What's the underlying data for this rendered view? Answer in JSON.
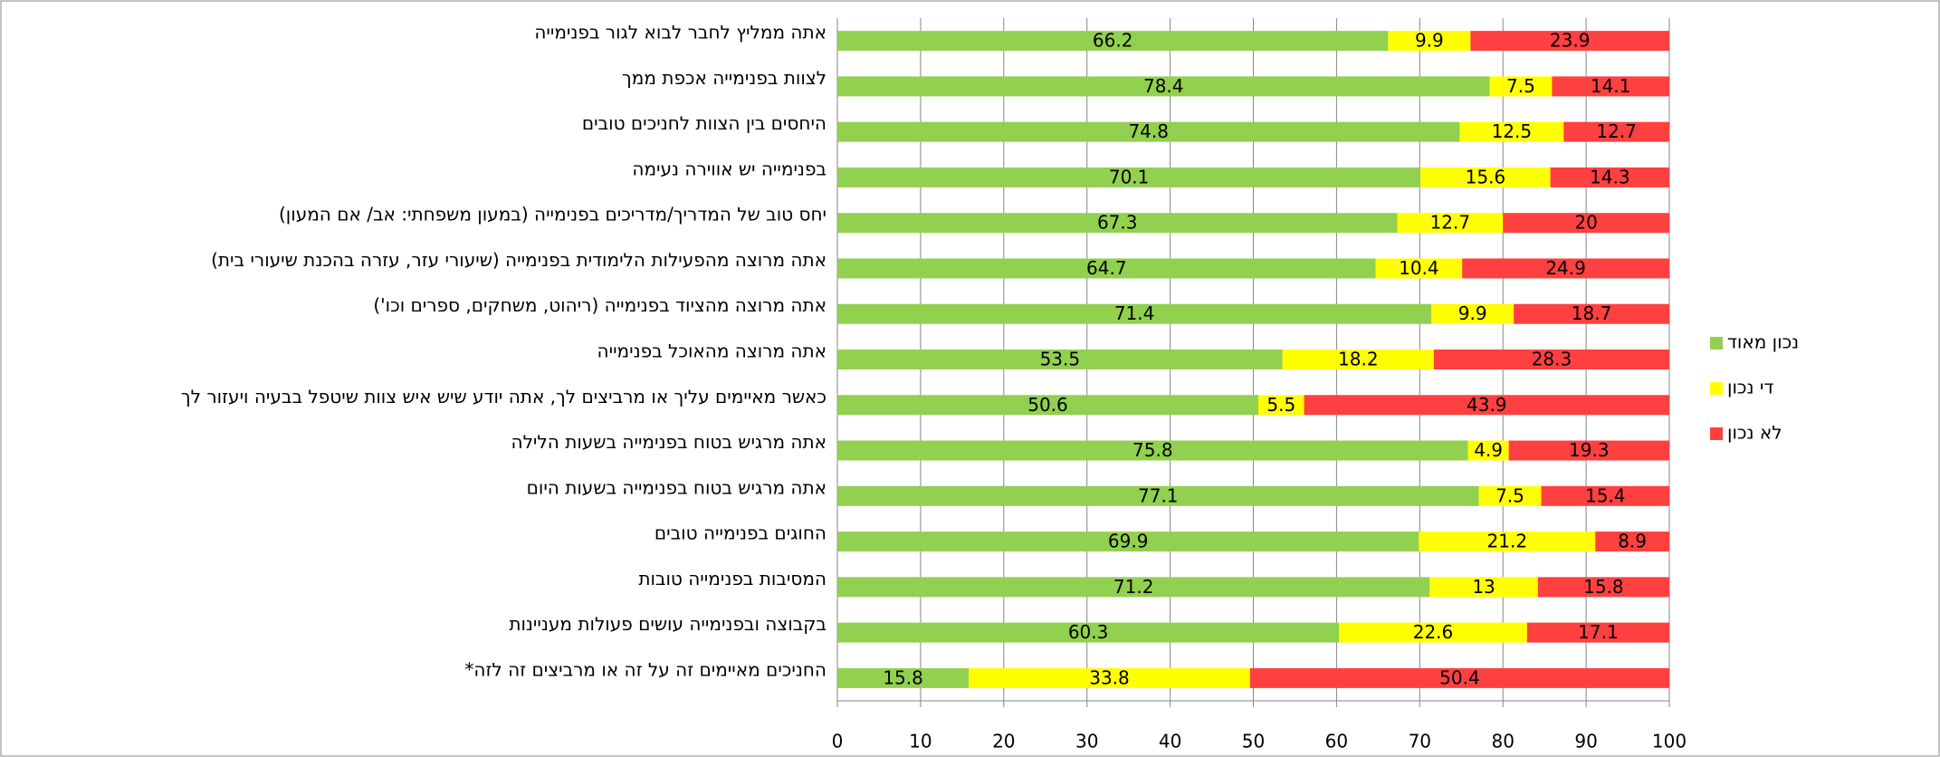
{
  "chart_data": {
    "type": "stacked-bar",
    "categories": [
      "אתה ממליץ לחבר לבוא לגור בפנימייה",
      "לצוות בפנימייה אכפת ממך",
      "היחסים בין הצוות לחניכים טובים",
      "בפנימייה יש אווירה נעימה",
      "יחס טוב של המדריך/מדריכים בפנימייה (במעון משפחתי: אב/ אם המעון)",
      "אתה מרוצה מהפעילות הלימודית בפנימייה (שיעורי עזר, עזרה בהכנת שיעורי בית)",
      "אתה מרוצה מהציוד בפנימייה (ריהוט, משחקים, ספרים וכו')",
      "אתה מרוצה מהאוכל בפנימייה",
      "כאשר מאיימים עליך או מרביצים לך, אתה יודע שיש איש צוות שיטפל בבעיה ויעזור לך",
      "אתה מרגיש בטוח בפנימייה בשעות הלילה",
      "אתה מרגיש בטוח בפנימייה בשעות היום",
      "החוגים בפנימייה טובים",
      "המסיבות בפנימייה טובות",
      "בקבוצה ובפנימייה עושים פעולות מעניינות",
      "החניכים מאיימים זה על זה או מרביצים זה לזה*"
    ],
    "series": [
      {
        "name": "נכון מאוד",
        "color": "#92d050",
        "values": [
          66.2,
          78.4,
          74.8,
          70.1,
          67.3,
          64.7,
          71.4,
          53.5,
          50.6,
          75.8,
          77.1,
          69.9,
          71.2,
          60.3,
          15.8
        ]
      },
      {
        "name": "די נכון",
        "color": "#ffff00",
        "values": [
          9.9,
          7.5,
          12.5,
          15.6,
          12.7,
          10.4,
          9.9,
          18.2,
          5.5,
          4.9,
          7.5,
          21.2,
          13,
          22.6,
          33.8
        ]
      },
      {
        "name": "לא נכון",
        "color": "#ff4040",
        "values": [
          23.9,
          14.1,
          12.7,
          14.3,
          20,
          24.9,
          18.7,
          28.3,
          43.9,
          19.3,
          15.4,
          8.9,
          15.8,
          17.1,
          50.4
        ]
      }
    ],
    "xlim": [
      0,
      100
    ],
    "xticks": [
      0,
      10,
      20,
      30,
      40,
      50,
      60,
      70,
      80,
      90,
      100
    ],
    "grid": true,
    "legend": "right"
  }
}
